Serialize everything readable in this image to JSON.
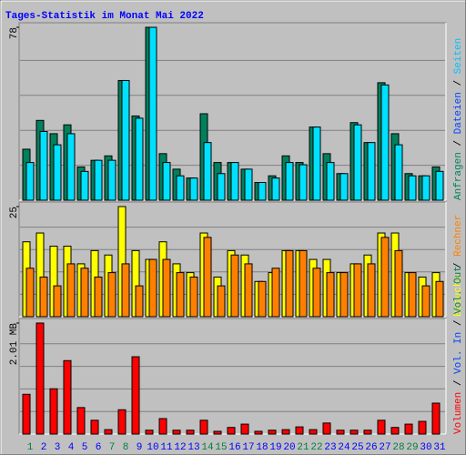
{
  "title": "Tages-Statistik im Monat Mai 2022",
  "chart_data": [
    {
      "type": "bar",
      "series": [
        {
          "name": "Anfragen",
          "color": "#00805C",
          "values": [
            23,
            36,
            30,
            34,
            15,
            18,
            20,
            54,
            38,
            78,
            21,
            14,
            10,
            39,
            17,
            17,
            14,
            8,
            11,
            20,
            17,
            33,
            21,
            12,
            35,
            26,
            53,
            30,
            12,
            11,
            15
          ]
        },
        {
          "name": "Seiten",
          "color": "#00E0FF",
          "values": [
            17,
            31,
            25,
            30,
            13,
            18,
            18,
            54,
            37,
            78,
            17,
            11,
            10,
            26,
            12,
            17,
            14,
            8,
            10,
            17,
            16,
            33,
            17,
            12,
            34,
            26,
            52,
            25,
            11,
            11,
            13
          ]
        }
      ],
      "ylim": [
        0,
        78
      ],
      "yticks": [
        78
      ],
      "axis_labels": [
        {
          "text": "Anfragen",
          "color": "#00805C"
        },
        {
          "text": "Dateien",
          "color": "#0040FF"
        },
        {
          "text": "Seiten",
          "color": "#00C0FF"
        }
      ],
      "label_separator": " / "
    },
    {
      "type": "bar",
      "series": [
        {
          "name": "Besuche",
          "color": "#FFFF00",
          "values": [
            17,
            19,
            16,
            16,
            12,
            15,
            14,
            25,
            15,
            13,
            17,
            12,
            10,
            19,
            9,
            15,
            14,
            8,
            10,
            15,
            15,
            13,
            13,
            10,
            12,
            14,
            19,
            19,
            10,
            9,
            10
          ]
        },
        {
          "name": "Rechner",
          "color": "#FF8000",
          "values": [
            11,
            9,
            7,
            12,
            11,
            9,
            10,
            12,
            7,
            13,
            13,
            10,
            9,
            18,
            7,
            14,
            12,
            8,
            11,
            15,
            15,
            11,
            10,
            10,
            12,
            12,
            18,
            15,
            10,
            7,
            8
          ]
        }
      ],
      "ylim": [
        0,
        25
      ],
      "yticks": [
        25
      ],
      "axis_labels": [
        {
          "text": "Besuche",
          "color": "#FFFF00"
        },
        {
          "text": "Rechner",
          "color": "#FF8000"
        }
      ],
      "label_separator": " / "
    },
    {
      "type": "bar",
      "series": [
        {
          "name": "Volumen",
          "color": "#FF0000",
          "values": [
            0.72,
            2.01,
            0.82,
            1.33,
            0.48,
            0.25,
            0.08,
            0.44,
            1.4,
            0.07,
            0.28,
            0.07,
            0.07,
            0.25,
            0.05,
            0.12,
            0.18,
            0.05,
            0.07,
            0.08,
            0.13,
            0.08,
            0.2,
            0.07,
            0.07,
            0.07,
            0.25,
            0.12,
            0.18,
            0.23,
            0.56
          ]
        }
      ],
      "ylim": [
        0,
        2.01
      ],
      "yticks": [
        {
          "value": 2.01,
          "label": "2.01 MB"
        }
      ],
      "axis_labels": [
        {
          "text": "Volumen",
          "color": "#FF0000"
        },
        {
          "text": "Vol. In",
          "color": "#0040FF"
        },
        {
          "text": "Vol. Out",
          "color": "#00805C"
        }
      ],
      "label_separator": " / ",
      "categories": [
        "1",
        "2",
        "3",
        "4",
        "5",
        "6",
        "7",
        "8",
        "9",
        "10",
        "11",
        "12",
        "13",
        "14",
        "15",
        "16",
        "17",
        "18",
        "19",
        "20",
        "21",
        "22",
        "23",
        "24",
        "25",
        "26",
        "27",
        "28",
        "29",
        "30",
        "31"
      ],
      "category_colors": [
        "#008040",
        "#0000FF",
        "#0000FF",
        "#0000FF",
        "#0000FF",
        "#0000FF",
        "#008040",
        "#008040",
        "#0000FF",
        "#0000FF",
        "#0000FF",
        "#0000FF",
        "#0000FF",
        "#008040",
        "#008040",
        "#0000FF",
        "#0000FF",
        "#0000FF",
        "#0000FF",
        "#0000FF",
        "#008040",
        "#008040",
        "#0000FF",
        "#0000FF",
        "#0000FF",
        "#0000FF",
        "#0000FF",
        "#008040",
        "#008040",
        "#0000FF",
        "#0000FF"
      ]
    }
  ]
}
